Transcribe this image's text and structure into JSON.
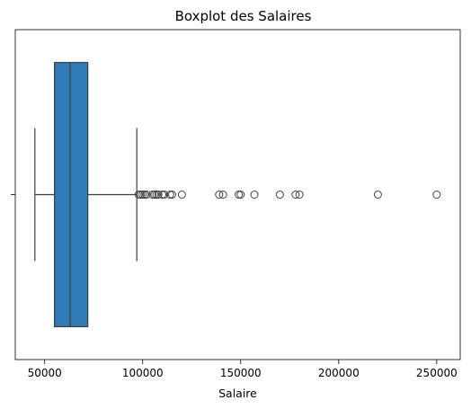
{
  "chart_data": {
    "type": "box",
    "title": "Boxplot des Salaires",
    "xlabel": "Salaire",
    "ylabel": "",
    "orientation": "horizontal",
    "xlim": [
      35000,
      262000
    ],
    "x_ticks": [
      50000,
      100000,
      150000,
      200000,
      250000
    ],
    "x_tick_labels": [
      "50000",
      "100000",
      "150000",
      "200000",
      "250000"
    ],
    "grid": false,
    "legend": "none",
    "box": {
      "whisker_low": 45000,
      "q1": 55000,
      "median": 63000,
      "q3": 72000,
      "whisker_high": 97000
    },
    "outliers": [
      98000,
      99000,
      100000,
      101000,
      102000,
      105000,
      106000,
      107000,
      108000,
      110000,
      111000,
      114000,
      115000,
      120000,
      139000,
      141000,
      149000,
      150000,
      157000,
      170000,
      178000,
      180000,
      220000,
      250000
    ],
    "colors": {
      "box_fill": "#2f7bb5",
      "line": "#3f3f3f",
      "outlier_edge": "#3f3f3f",
      "axes": "#000000"
    }
  }
}
